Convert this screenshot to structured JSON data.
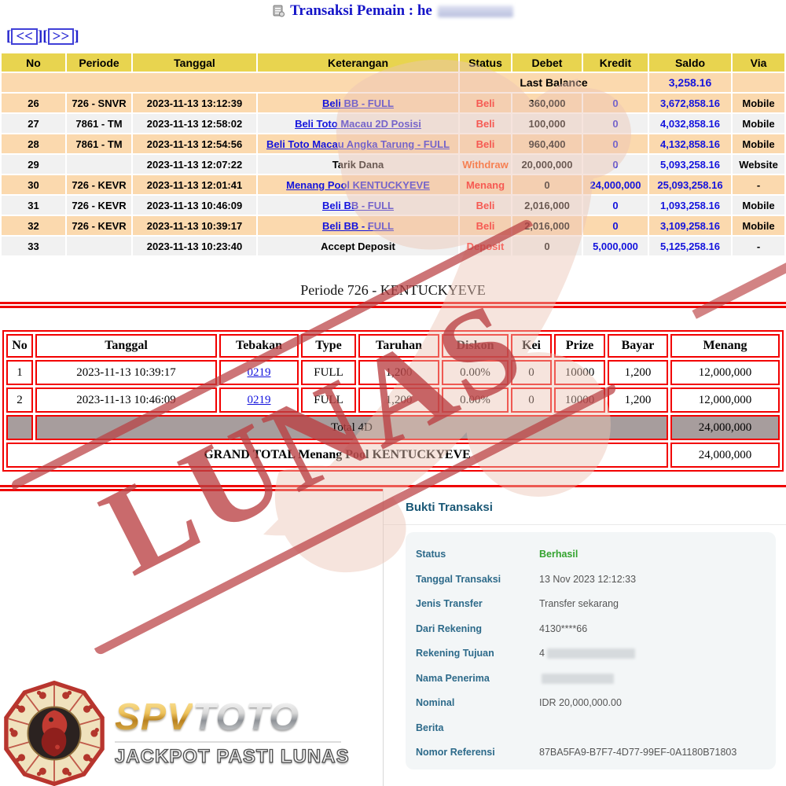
{
  "page": {
    "title": "Transaksi  Pemain : he",
    "prev_label": "<<",
    "next_label": ">>"
  },
  "transactions": {
    "headers": [
      "No",
      "Periode",
      "Tanggal",
      "Keterangan",
      "Status",
      "Debet",
      "Kredit",
      "Saldo",
      "Via"
    ],
    "last_balance_label": "Last Balance",
    "last_balance_value": "3,258.16",
    "rows": [
      {
        "no": "26",
        "periode": "726 - SNVR",
        "tanggal": "2023-11-13 13:12:39",
        "keterangan": "Beli BB - FULL",
        "link": true,
        "status": "Beli",
        "status_color": "#ff0000",
        "debet": "360,000",
        "kredit": "0",
        "saldo": "3,672,858.16",
        "via": "Mobile"
      },
      {
        "no": "27",
        "periode": "7861 - TM",
        "tanggal": "2023-11-13 12:58:02",
        "keterangan": "Beli Toto Macau 2D Posisi",
        "link": true,
        "status": "Beli",
        "status_color": "#ff0000",
        "debet": "100,000",
        "kredit": "0",
        "saldo": "4,032,858.16",
        "via": "Mobile"
      },
      {
        "no": "28",
        "periode": "7861 - TM",
        "tanggal": "2023-11-13 12:54:56",
        "keterangan": "Beli Toto Macau Angka Tarung - FULL",
        "link": true,
        "status": "Beli",
        "status_color": "#ff0000",
        "debet": "960,400",
        "kredit": "0",
        "saldo": "4,132,858.16",
        "via": "Mobile"
      },
      {
        "no": "29",
        "periode": "",
        "tanggal": "2023-11-13 12:07:22",
        "keterangan": "Tarik Dana",
        "link": false,
        "status": "Withdraw",
        "status_color": "#ff4800",
        "debet": "20,000,000",
        "kredit": "0",
        "saldo": "5,093,258.16",
        "via": "Website"
      },
      {
        "no": "30",
        "periode": "726 - KEVR",
        "tanggal": "2023-11-13 12:01:41",
        "keterangan": "Menang Pool KENTUCKYEVE",
        "link": true,
        "status": "Menang",
        "status_color": "#ff0000",
        "debet": "0",
        "kredit": "24,000,000",
        "saldo": "25,093,258.16",
        "via": "-"
      },
      {
        "no": "31",
        "periode": "726 - KEVR",
        "tanggal": "2023-11-13 10:46:09",
        "keterangan": "Beli BB - FULL",
        "link": true,
        "status": "Beli",
        "status_color": "#ff0000",
        "debet": "2,016,000",
        "kredit": "0",
        "saldo": "1,093,258.16",
        "via": "Mobile"
      },
      {
        "no": "32",
        "periode": "726 - KEVR",
        "tanggal": "2023-11-13 10:39:17",
        "keterangan": "Beli BB - FULL",
        "link": true,
        "status": "Beli",
        "status_color": "#ff0000",
        "debet": "2,016,000",
        "kredit": "0",
        "saldo": "3,109,258.16",
        "via": "Mobile"
      },
      {
        "no": "33",
        "periode": "",
        "tanggal": "2023-11-13 10:23:40",
        "keterangan": "Accept Deposit",
        "link": false,
        "status": "Deposit",
        "status_color": "#ff2020",
        "debet": "0",
        "kredit": "5,000,000",
        "saldo": "5,125,258.16",
        "via": "-"
      }
    ]
  },
  "periode_heading": "Periode 726 - KENTUCKYEVE",
  "bets": {
    "headers": [
      "No",
      "Tanggal",
      "Tebakan",
      "Type",
      "Taruhan",
      "Diskon",
      "Kei",
      "Prize",
      "Bayar",
      "Menang"
    ],
    "rows": [
      {
        "no": "1",
        "tanggal": "2023-11-13 10:39:17",
        "tebakan": "0219",
        "type": "FULL",
        "taruhan": "1,200",
        "diskon": "0.00%",
        "kei": "0",
        "prize": "10000",
        "bayar": "1,200",
        "menang": "12,000,000"
      },
      {
        "no": "2",
        "tanggal": "2023-11-13 10:46:09",
        "tebakan": "0219",
        "type": "FULL",
        "taruhan": "1,200",
        "diskon": "0.00%",
        "kei": "0",
        "prize": "10000",
        "bayar": "1,200",
        "menang": "12,000,000"
      }
    ],
    "total_label": "Total 4D",
    "total_value": "24,000,000",
    "grand_total_label": "GRAND TOTAL  Menang Pool KENTUCKYEVE",
    "grand_total_value": "24,000,000"
  },
  "receipt": {
    "title": "Bukti Transaksi",
    "rows": [
      {
        "label": "Status",
        "value": "Berhasil",
        "style": "success"
      },
      {
        "label": "Tanggal Transaksi",
        "value": "13 Nov 2023 12:12:33"
      },
      {
        "label": "Jenis Transfer",
        "value": "Transfer sekarang"
      },
      {
        "label": "Dari Rekening",
        "value": "4130****66"
      },
      {
        "label": "Rekening Tujuan",
        "value": "4",
        "redacted": "wide"
      },
      {
        "label": "Nama Penerima",
        "value": "",
        "redacted": "med"
      },
      {
        "label": "Nominal",
        "value": "IDR 20,000,000.00"
      },
      {
        "label": "Berita",
        "value": ""
      },
      {
        "label": "Nomor Referensi",
        "value": "87BA5FA9-B7F7-4D77-99EF-0A1180B71803"
      }
    ]
  },
  "brand": {
    "name_gold": "SPV",
    "name_silver": "TOTO",
    "tagline": "JACKPOT PASTI LUNAS"
  },
  "watermark": {
    "stamp": "LUNAS"
  },
  "colors": {
    "header_yellow": "#e8d44f",
    "row_peach": "#fbd9ae",
    "row_gray": "#f1f1f1",
    "link_blue": "#1414dd",
    "table_red": "#f20000",
    "total_gray": "#a79d9d",
    "receipt_label_blue": "#2d6a8a",
    "receipt_title_teal": "#1a5876",
    "success_green": "#33a32e",
    "stamp_red": "#ba4042"
  }
}
